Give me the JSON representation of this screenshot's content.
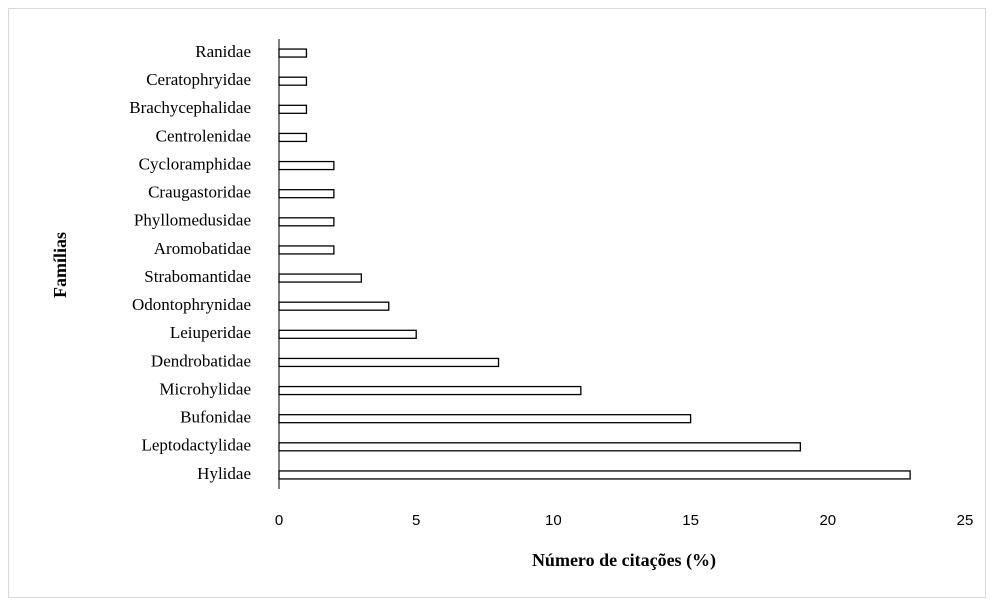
{
  "chart_data": {
    "type": "bar",
    "orientation": "horizontal",
    "categories": [
      "Ranidae",
      "Ceratophryidae",
      "Brachycephalidae",
      "Centrolenidae",
      "Cycloramphidae",
      "Craugastoridae",
      "Phyllomedusidae",
      "Aromobatidae",
      "Strabomantidae",
      "Odontophrynidae",
      "Leiuperidae",
      "Dendrobatidae",
      "Microhylidae",
      "Bufonidae",
      "Leptodactylidae",
      "Hylidae"
    ],
    "values": [
      1,
      1,
      1,
      1,
      2,
      2,
      2,
      2,
      3,
      4,
      5,
      8,
      11,
      15,
      19,
      23
    ],
    "color": "#ffffff",
    "edgecolor": "#000000",
    "xlabel": "Número de citações (%)",
    "ylabel": "Famílias",
    "xlim": [
      0,
      25
    ],
    "xticks": [
      0,
      5,
      10,
      15,
      20,
      25
    ],
    "grid": false
  }
}
